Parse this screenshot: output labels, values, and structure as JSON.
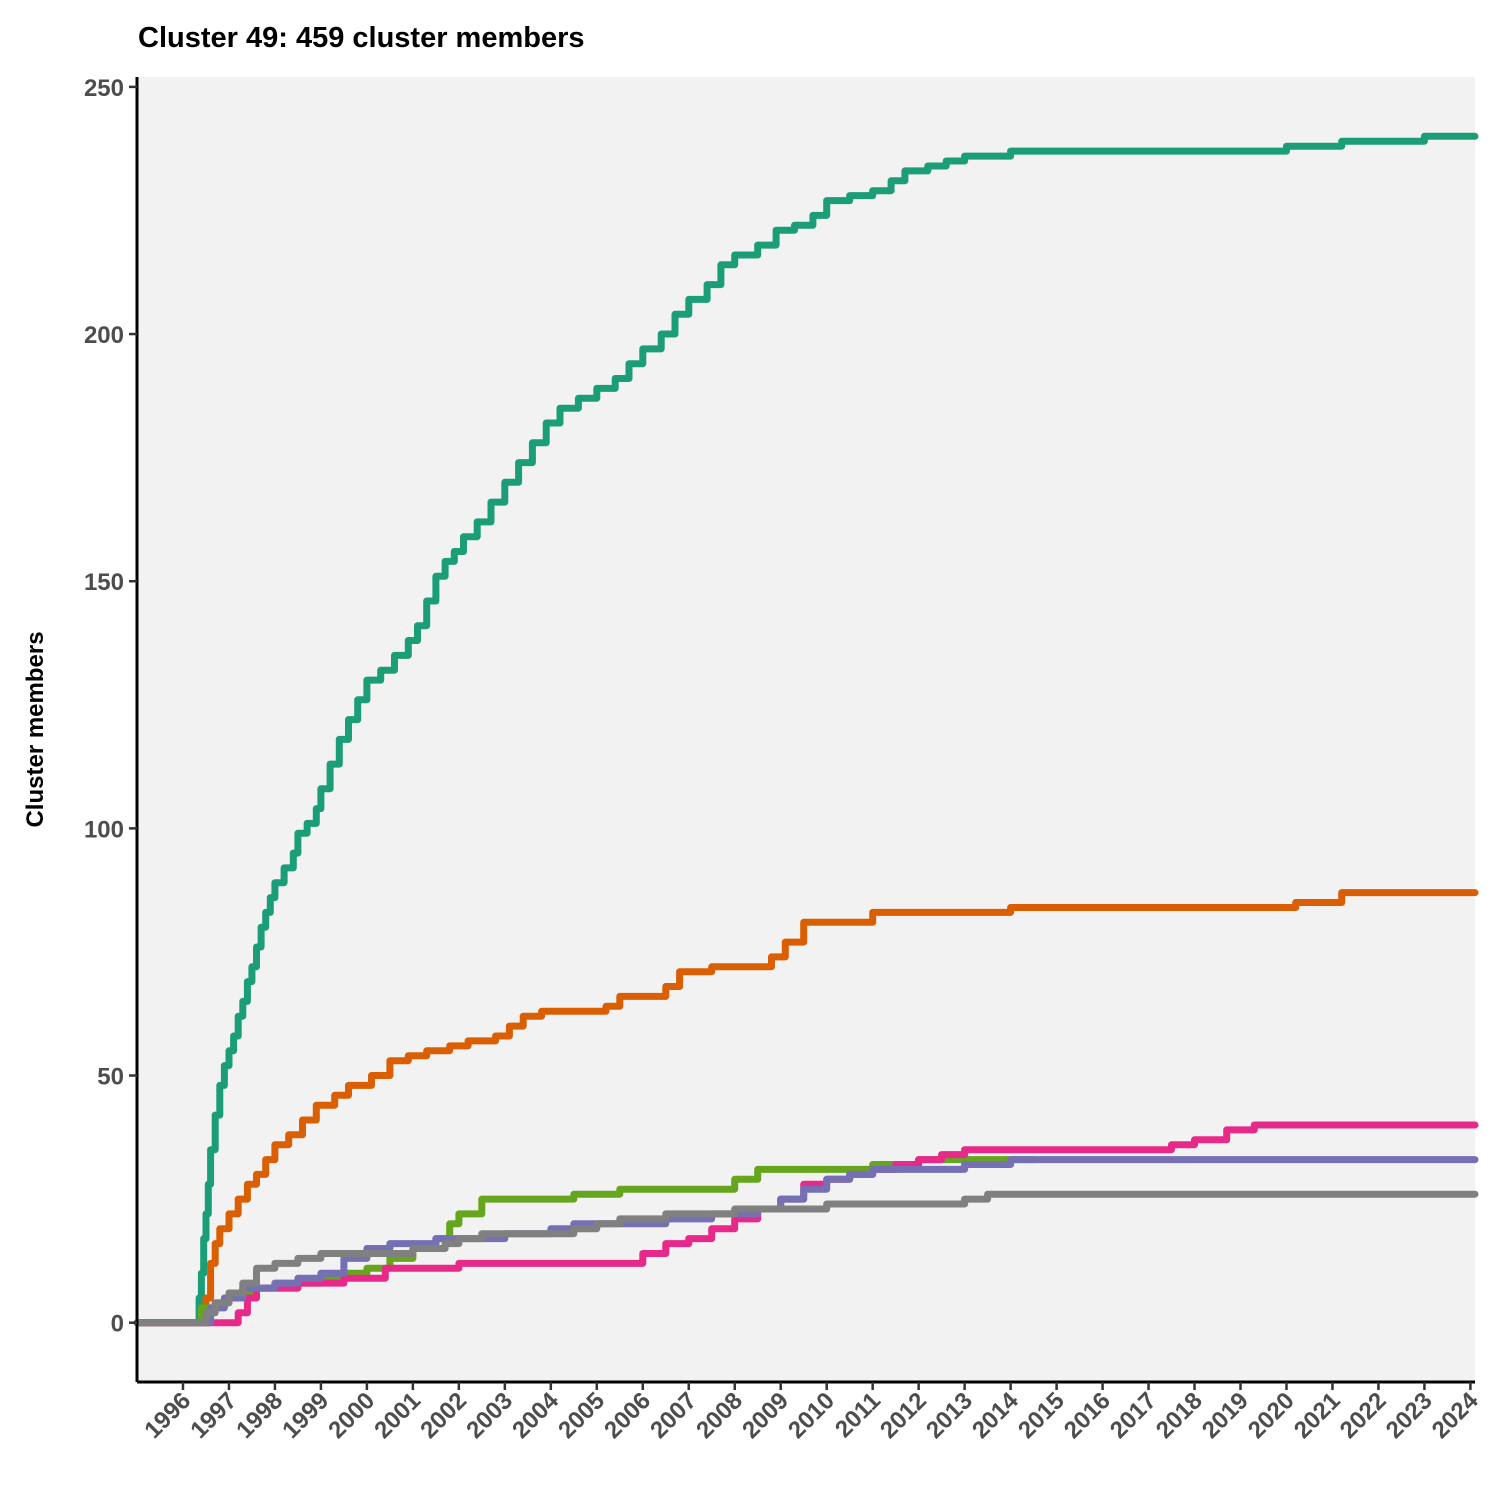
{
  "chart_data": {
    "type": "line",
    "step": true,
    "title": "Cluster 49: 459 cluster members",
    "xlabel": "",
    "ylabel": "Cluster members",
    "xlim": [
      1995.0,
      2024.1
    ],
    "ylim": [
      -12,
      252
    ],
    "x_ticks": [
      1996,
      1997,
      1998,
      1999,
      2000,
      2001,
      2002,
      2003,
      2004,
      2005,
      2006,
      2007,
      2008,
      2009,
      2010,
      2011,
      2012,
      2013,
      2014,
      2015,
      2016,
      2017,
      2018,
      2019,
      2020,
      2021,
      2022,
      2023,
      2024
    ],
    "y_ticks": [
      0,
      50,
      100,
      150,
      200,
      250
    ],
    "grid": false,
    "legend": "none",
    "background": "#f2f2f2",
    "series": [
      {
        "color": "#1b9e77",
        "points": [
          [
            1995.0,
            0
          ],
          [
            1996.3,
            0
          ],
          [
            1996.35,
            5
          ],
          [
            1996.4,
            10
          ],
          [
            1996.45,
            17
          ],
          [
            1996.5,
            22
          ],
          [
            1996.55,
            28
          ],
          [
            1996.6,
            35
          ],
          [
            1996.7,
            42
          ],
          [
            1996.8,
            48
          ],
          [
            1996.9,
            52
          ],
          [
            1997.0,
            55
          ],
          [
            1997.1,
            58
          ],
          [
            1997.2,
            62
          ],
          [
            1997.3,
            65
          ],
          [
            1997.4,
            69
          ],
          [
            1997.5,
            72
          ],
          [
            1997.6,
            76
          ],
          [
            1997.7,
            80
          ],
          [
            1997.8,
            83
          ],
          [
            1997.9,
            86
          ],
          [
            1998.0,
            89
          ],
          [
            1998.2,
            92
          ],
          [
            1998.4,
            95
          ],
          [
            1998.5,
            99
          ],
          [
            1998.7,
            101
          ],
          [
            1998.9,
            104
          ],
          [
            1999.0,
            108
          ],
          [
            1999.2,
            113
          ],
          [
            1999.4,
            118
          ],
          [
            1999.6,
            122
          ],
          [
            1999.8,
            126
          ],
          [
            2000.0,
            130
          ],
          [
            2000.3,
            132
          ],
          [
            2000.6,
            135
          ],
          [
            2000.9,
            138
          ],
          [
            2001.1,
            141
          ],
          [
            2001.3,
            146
          ],
          [
            2001.5,
            151
          ],
          [
            2001.7,
            154
          ],
          [
            2001.9,
            156
          ],
          [
            2002.1,
            159
          ],
          [
            2002.4,
            162
          ],
          [
            2002.7,
            166
          ],
          [
            2003.0,
            170
          ],
          [
            2003.3,
            174
          ],
          [
            2003.6,
            178
          ],
          [
            2003.9,
            182
          ],
          [
            2004.2,
            185
          ],
          [
            2004.6,
            187
          ],
          [
            2005.0,
            189
          ],
          [
            2005.4,
            191
          ],
          [
            2005.7,
            194
          ],
          [
            2006.0,
            197
          ],
          [
            2006.4,
            200
          ],
          [
            2006.7,
            204
          ],
          [
            2007.0,
            207
          ],
          [
            2007.4,
            210
          ],
          [
            2007.7,
            214
          ],
          [
            2008.0,
            216
          ],
          [
            2008.5,
            218
          ],
          [
            2008.9,
            221
          ],
          [
            2009.3,
            222
          ],
          [
            2009.7,
            224
          ],
          [
            2010.0,
            227
          ],
          [
            2010.5,
            228
          ],
          [
            2011.0,
            229
          ],
          [
            2011.4,
            231
          ],
          [
            2011.7,
            233
          ],
          [
            2012.2,
            234
          ],
          [
            2012.6,
            235
          ],
          [
            2013.0,
            236
          ],
          [
            2013.5,
            236
          ],
          [
            2014.0,
            237
          ],
          [
            2016.0,
            237
          ],
          [
            2019.0,
            237
          ],
          [
            2020.0,
            238
          ],
          [
            2021.2,
            239
          ],
          [
            2022.0,
            239
          ],
          [
            2023.0,
            240
          ],
          [
            2024.1,
            240
          ]
        ]
      },
      {
        "color": "#d95f02",
        "points": [
          [
            1995.0,
            0
          ],
          [
            1996.4,
            0
          ],
          [
            1996.5,
            5
          ],
          [
            1996.6,
            12
          ],
          [
            1996.7,
            16
          ],
          [
            1996.8,
            19
          ],
          [
            1997.0,
            22
          ],
          [
            1997.2,
            25
          ],
          [
            1997.4,
            28
          ],
          [
            1997.6,
            30
          ],
          [
            1997.8,
            33
          ],
          [
            1998.0,
            36
          ],
          [
            1998.3,
            38
          ],
          [
            1998.6,
            41
          ],
          [
            1998.9,
            44
          ],
          [
            1999.3,
            46
          ],
          [
            1999.6,
            48
          ],
          [
            2000.1,
            50
          ],
          [
            2000.5,
            53
          ],
          [
            2000.9,
            54
          ],
          [
            2001.3,
            55
          ],
          [
            2001.8,
            56
          ],
          [
            2002.2,
            57
          ],
          [
            2002.8,
            58
          ],
          [
            2003.1,
            60
          ],
          [
            2003.4,
            62
          ],
          [
            2003.8,
            63
          ],
          [
            2004.6,
            63
          ],
          [
            2005.2,
            64
          ],
          [
            2005.5,
            66
          ],
          [
            2006.5,
            68
          ],
          [
            2006.8,
            71
          ],
          [
            2007.5,
            72
          ],
          [
            2008.5,
            72
          ],
          [
            2008.8,
            74
          ],
          [
            2009.1,
            77
          ],
          [
            2009.5,
            81
          ],
          [
            2010.5,
            81
          ],
          [
            2011.0,
            83
          ],
          [
            2012.5,
            83
          ],
          [
            2014.0,
            84
          ],
          [
            2016.0,
            84
          ],
          [
            2019.0,
            84
          ],
          [
            2020.2,
            85
          ],
          [
            2021.2,
            87
          ],
          [
            2024.1,
            87
          ]
        ]
      },
      {
        "color": "#66a61e",
        "points": [
          [
            1995.0,
            0
          ],
          [
            1996.3,
            0
          ],
          [
            1996.4,
            3
          ],
          [
            1996.7,
            4
          ],
          [
            1997.0,
            6
          ],
          [
            1997.5,
            7
          ],
          [
            1998.0,
            7
          ],
          [
            1998.5,
            8
          ],
          [
            1999.0,
            9
          ],
          [
            1999.5,
            10
          ],
          [
            2000.0,
            11
          ],
          [
            2000.5,
            13
          ],
          [
            2001.0,
            15
          ],
          [
            2001.5,
            17
          ],
          [
            2001.8,
            20
          ],
          [
            2002.0,
            22
          ],
          [
            2002.5,
            25
          ],
          [
            2003.0,
            25
          ],
          [
            2004.0,
            25
          ],
          [
            2004.5,
            26
          ],
          [
            2005.0,
            26
          ],
          [
            2005.5,
            27
          ],
          [
            2006.0,
            27
          ],
          [
            2007.5,
            27
          ],
          [
            2008.0,
            29
          ],
          [
            2008.5,
            31
          ],
          [
            2009.0,
            31
          ],
          [
            2010.0,
            31
          ],
          [
            2011.0,
            32
          ],
          [
            2012.0,
            33
          ],
          [
            2013.0,
            33
          ],
          [
            2014.0,
            33
          ],
          [
            2014.5,
            33
          ]
        ]
      },
      {
        "color": "#e7298a",
        "points": [
          [
            1995.0,
            0
          ],
          [
            1996.7,
            0
          ],
          [
            1997.2,
            2
          ],
          [
            1997.4,
            5
          ],
          [
            1997.6,
            7
          ],
          [
            1998.0,
            7
          ],
          [
            1998.5,
            8
          ],
          [
            1999.0,
            8
          ],
          [
            1999.5,
            9
          ],
          [
            2000.0,
            9
          ],
          [
            2000.4,
            11
          ],
          [
            2001.0,
            11
          ],
          [
            2002.0,
            12
          ],
          [
            2003.0,
            12
          ],
          [
            2004.0,
            12
          ],
          [
            2005.0,
            12
          ],
          [
            2006.0,
            14
          ],
          [
            2006.5,
            16
          ],
          [
            2007.0,
            17
          ],
          [
            2007.5,
            19
          ],
          [
            2008.0,
            21
          ],
          [
            2008.5,
            23
          ],
          [
            2009.0,
            25
          ],
          [
            2009.5,
            28
          ],
          [
            2010.0,
            29
          ],
          [
            2010.5,
            30
          ],
          [
            2011.0,
            31
          ],
          [
            2011.5,
            32
          ],
          [
            2012.0,
            33
          ],
          [
            2012.5,
            34
          ],
          [
            2013.0,
            35
          ],
          [
            2014.0,
            35
          ],
          [
            2015.0,
            35
          ],
          [
            2016.0,
            35
          ],
          [
            2017.0,
            35
          ],
          [
            2017.5,
            36
          ],
          [
            2018.0,
            37
          ],
          [
            2018.7,
            39
          ],
          [
            2019.3,
            40
          ],
          [
            2024.1,
            40
          ]
        ]
      },
      {
        "color": "#7570b3",
        "points": [
          [
            1995.0,
            0
          ],
          [
            1996.4,
            0
          ],
          [
            1996.6,
            3
          ],
          [
            1996.9,
            5
          ],
          [
            1997.3,
            7
          ],
          [
            1998.0,
            8
          ],
          [
            1998.5,
            9
          ],
          [
            1999.0,
            10
          ],
          [
            1999.5,
            13
          ],
          [
            2000.0,
            15
          ],
          [
            2000.5,
            16
          ],
          [
            2001.0,
            16
          ],
          [
            2001.5,
            17
          ],
          [
            2002.0,
            17
          ],
          [
            2003.0,
            18
          ],
          [
            2004.0,
            19
          ],
          [
            2004.5,
            20
          ],
          [
            2005.0,
            20
          ],
          [
            2006.0,
            20
          ],
          [
            2006.5,
            21
          ],
          [
            2007.0,
            21
          ],
          [
            2007.5,
            22
          ],
          [
            2008.0,
            22
          ],
          [
            2008.5,
            23
          ],
          [
            2009.0,
            25
          ],
          [
            2009.5,
            27
          ],
          [
            2010.0,
            29
          ],
          [
            2010.5,
            30
          ],
          [
            2011.0,
            31
          ],
          [
            2012.0,
            31
          ],
          [
            2013.0,
            32
          ],
          [
            2014.0,
            33
          ],
          [
            2016.0,
            33
          ],
          [
            2020.0,
            33
          ],
          [
            2024.1,
            33
          ]
        ]
      },
      {
        "color": "#808080",
        "points": [
          [
            1995.0,
            0
          ],
          [
            1996.3,
            0
          ],
          [
            1996.5,
            2
          ],
          [
            1996.7,
            4
          ],
          [
            1997.0,
            6
          ],
          [
            1997.3,
            8
          ],
          [
            1997.6,
            11
          ],
          [
            1998.0,
            12
          ],
          [
            1998.5,
            13
          ],
          [
            1999.0,
            14
          ],
          [
            2000.0,
            14
          ],
          [
            2001.0,
            15
          ],
          [
            2001.7,
            16
          ],
          [
            2002.0,
            17
          ],
          [
            2002.5,
            18
          ],
          [
            2003.0,
            18
          ],
          [
            2004.0,
            18
          ],
          [
            2004.5,
            19
          ],
          [
            2005.0,
            20
          ],
          [
            2005.5,
            21
          ],
          [
            2006.0,
            21
          ],
          [
            2006.5,
            22
          ],
          [
            2007.0,
            22
          ],
          [
            2007.5,
            22
          ],
          [
            2008.0,
            23
          ],
          [
            2009.0,
            23
          ],
          [
            2010.0,
            24
          ],
          [
            2011.0,
            24
          ],
          [
            2012.0,
            24
          ],
          [
            2013.0,
            25
          ],
          [
            2013.5,
            26
          ],
          [
            2014.0,
            26
          ],
          [
            2016.0,
            26
          ],
          [
            2020.0,
            26
          ],
          [
            2024.1,
            26
          ]
        ]
      }
    ]
  }
}
